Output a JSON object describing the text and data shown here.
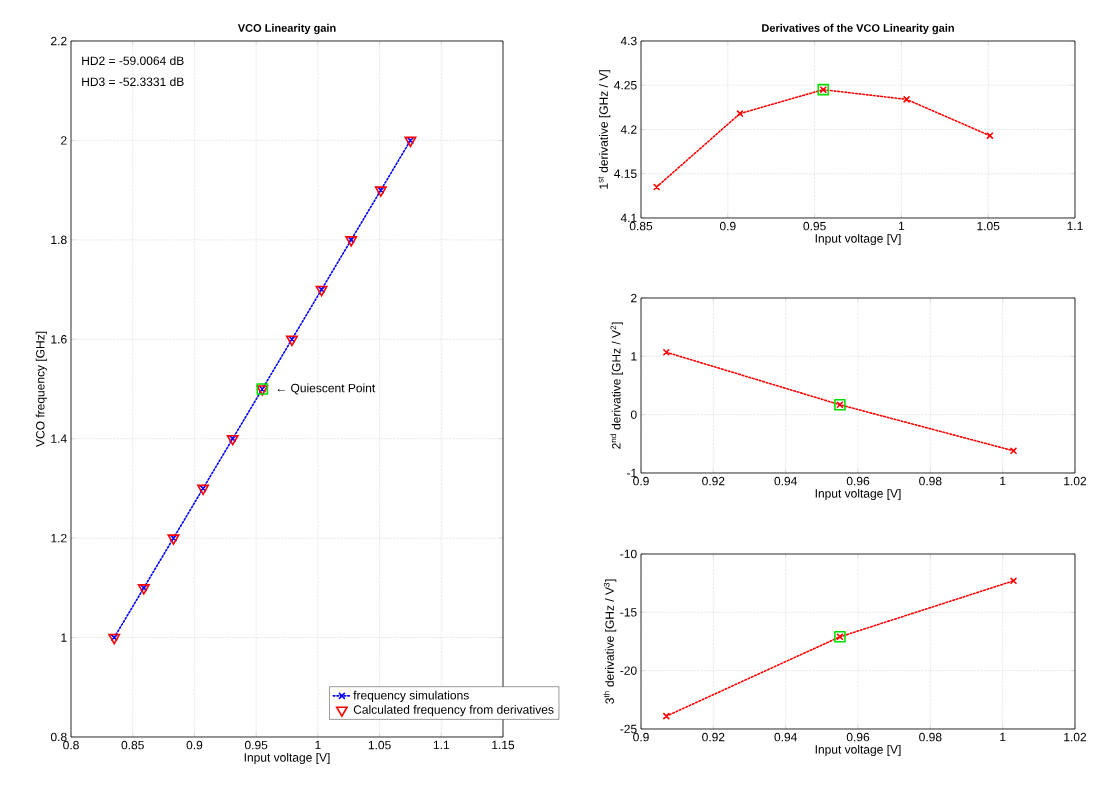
{
  "chart_data": [
    {
      "type": "line",
      "title": "VCO Linearity gain",
      "xlabel": "Input voltage [V]",
      "ylabel": "VCO frequency [GHz]",
      "xlim": [
        0.8,
        1.15
      ],
      "xticks": [
        0.8,
        0.85,
        0.9,
        0.95,
        1,
        1.05,
        1.1,
        1.15
      ],
      "ylim": [
        0.8,
        2.2
      ],
      "yticks": [
        0.8,
        1,
        1.2,
        1.4,
        1.6,
        1.8,
        2,
        2.2
      ],
      "grid": true,
      "legend": "bottom right",
      "annotations": [
        "HD2 = -59.0064 dB",
        "HD3 = -52.3331 dB",
        {
          "text": "← Quiescent Point",
          "x": 0.955,
          "y": 1.5
        }
      ],
      "series": [
        {
          "name": "frequency simulations",
          "type": "line",
          "color": "#0000ff",
          "marker": "cross",
          "line_style": "dotted",
          "x": [
            0.835,
            0.859,
            0.883,
            0.907,
            0.931,
            0.955,
            0.979,
            1.003,
            1.027,
            1.051,
            1.075
          ],
          "values": [
            1.0,
            1.1,
            1.2,
            1.3,
            1.4,
            1.5,
            1.6,
            1.7,
            1.8,
            1.9,
            2.0
          ]
        },
        {
          "name": "Calculated frequency from derivatives",
          "type": "scatter",
          "color": "#ff0000",
          "marker": "triangle",
          "x": [
            0.835,
            0.859,
            0.883,
            0.907,
            0.931,
            0.955,
            0.979,
            1.003,
            1.027,
            1.051,
            1.075
          ],
          "values": [
            1.0,
            1.1,
            1.2,
            1.3,
            1.4,
            1.5,
            1.6,
            1.7,
            1.8,
            1.9,
            2.0
          ]
        },
        {
          "type": "scatter",
          "color": "#00e000",
          "marker": "square",
          "x": [
            0.955
          ],
          "values": [
            1.5
          ]
        }
      ]
    },
    {
      "type": "line",
      "title": "Derivatives of the VCO Linearity gain",
      "xlabel": "Input voltage [V]",
      "ylabel": "1$^{st}$ derivative [GHz / V]",
      "xlim": [
        0.85,
        1.1
      ],
      "xticks": [
        0.85,
        0.9,
        0.95,
        1,
        1.05,
        1.1
      ],
      "ylim": [
        4.1,
        4.3
      ],
      "yticks": [
        4.1,
        4.15,
        4.2,
        4.25,
        4.3
      ],
      "grid": true,
      "series": [
        {
          "type": "line",
          "color": "#ff0000",
          "marker": "cross",
          "line_style": "dotted",
          "x": [
            0.859,
            0.907,
            0.955,
            1.003,
            1.051
          ],
          "values": [
            4.135,
            4.218,
            4.245,
            4.234,
            4.193
          ]
        },
        {
          "type": "scatter",
          "color": "#00e000",
          "marker": "square",
          "x": [
            0.955
          ],
          "values": [
            4.245
          ]
        }
      ]
    },
    {
      "type": "line",
      "xlabel": "Input voltage [V]",
      "ylabel": "2$^{nd}$ derivative [GHz / V$^{2}$]",
      "xlim": [
        0.9,
        1.02
      ],
      "xticks": [
        0.9,
        0.92,
        0.94,
        0.96,
        0.98,
        1,
        1.02
      ],
      "ylim": [
        -1,
        2
      ],
      "yticks": [
        -1,
        0,
        1,
        2
      ],
      "grid": true,
      "series": [
        {
          "type": "line",
          "color": "#ff0000",
          "marker": "cross",
          "line_style": "dotted",
          "x": [
            0.907,
            0.955,
            1.003
          ],
          "values": [
            1.07,
            0.17,
            -0.62
          ]
        },
        {
          "type": "scatter",
          "color": "#00e000",
          "marker": "square",
          "x": [
            0.955
          ],
          "values": [
            0.17
          ]
        }
      ]
    },
    {
      "type": "line",
      "xlabel": "Input voltage [V]",
      "ylabel": "3$^{th}$ derivative [GHz / V$^{3}$]",
      "xlim": [
        0.9,
        1.02
      ],
      "xticks": [
        0.9,
        0.92,
        0.94,
        0.96,
        0.98,
        1,
        1.02
      ],
      "ylim": [
        -25,
        -10
      ],
      "yticks": [
        -25,
        -20,
        -15,
        -10
      ],
      "grid": true,
      "series": [
        {
          "type": "line",
          "color": "#ff0000",
          "marker": "cross",
          "line_style": "dotted",
          "x": [
            0.907,
            0.955,
            1.003
          ],
          "values": [
            -23.9,
            -17.1,
            -12.3
          ]
        },
        {
          "type": "scatter",
          "color": "#00e000",
          "marker": "square",
          "x": [
            0.955
          ],
          "values": [
            -17.1
          ]
        }
      ]
    }
  ]
}
